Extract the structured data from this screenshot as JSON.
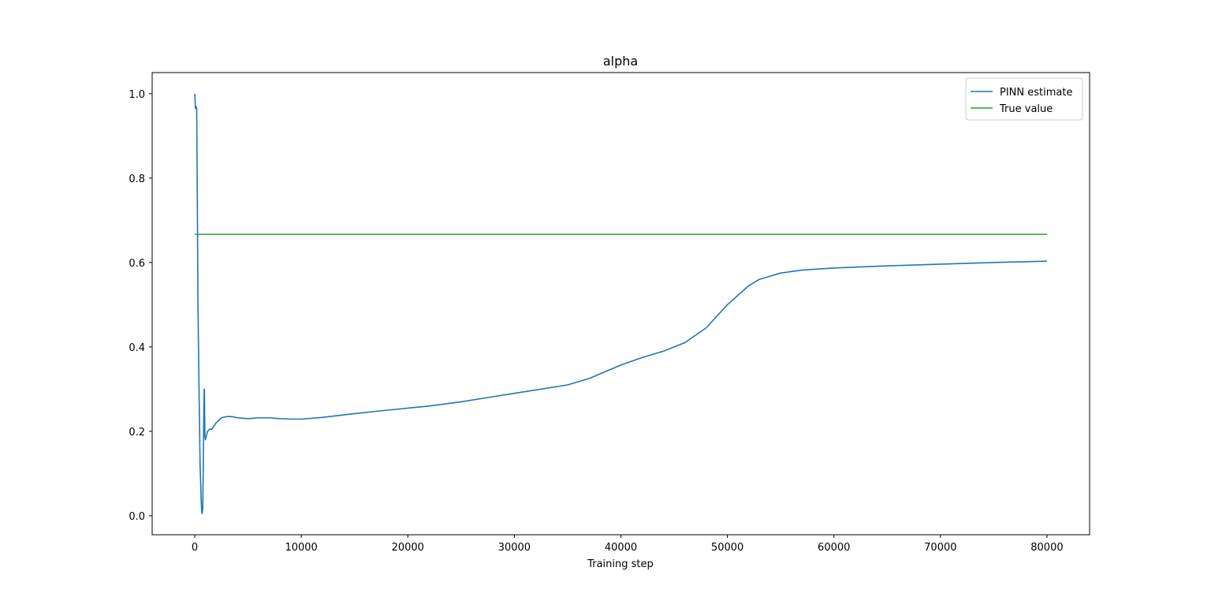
{
  "chart_data": {
    "type": "line",
    "title": "alpha",
    "xlabel": "Training step",
    "ylabel": "",
    "xlim": [
      -4000,
      84000
    ],
    "ylim": [
      -0.045,
      1.05
    ],
    "grid": false,
    "legend_position": "top-right",
    "xticks": [
      0,
      10000,
      20000,
      30000,
      40000,
      50000,
      60000,
      70000,
      80000
    ],
    "yticks": [
      0.0,
      0.2,
      0.4,
      0.6,
      0.8,
      1.0
    ],
    "ytick_labels": [
      "0.0",
      "0.2",
      "0.4",
      "0.6",
      "0.8",
      "1.0"
    ],
    "series": [
      {
        "name": "PINN estimate",
        "color": "#1f77b4",
        "x": [
          0,
          60,
          120,
          180,
          240,
          300,
          400,
          500,
          600,
          650,
          700,
          750,
          800,
          850,
          880,
          900,
          950,
          1000,
          1100,
          1200,
          1400,
          1600,
          2000,
          2500,
          3000,
          3500,
          4000,
          5000,
          6000,
          7000,
          8000,
          9000,
          10000,
          12000,
          15000,
          18000,
          20000,
          22000,
          25000,
          28000,
          30000,
          32000,
          35000,
          37000,
          40000,
          42000,
          44000,
          46000,
          48000,
          50000,
          52000,
          53000,
          55000,
          57000,
          60000,
          65000,
          70000,
          75000,
          80000
        ],
        "y": [
          1.0,
          0.965,
          0.97,
          0.965,
          0.75,
          0.5,
          0.3,
          0.12,
          0.04,
          0.01,
          0.005,
          0.02,
          0.12,
          0.25,
          0.3,
          0.3,
          0.19,
          0.18,
          0.19,
          0.2,
          0.205,
          0.205,
          0.22,
          0.232,
          0.235,
          0.235,
          0.232,
          0.23,
          0.232,
          0.232,
          0.23,
          0.229,
          0.229,
          0.233,
          0.242,
          0.25,
          0.255,
          0.26,
          0.27,
          0.282,
          0.29,
          0.298,
          0.31,
          0.325,
          0.357,
          0.375,
          0.39,
          0.41,
          0.445,
          0.5,
          0.545,
          0.56,
          0.575,
          0.582,
          0.587,
          0.592,
          0.596,
          0.6,
          0.603
        ]
      },
      {
        "name": "True value",
        "color": "#2ca02c",
        "x": [
          0,
          80000
        ],
        "y": [
          0.6667,
          0.6667
        ]
      }
    ]
  }
}
